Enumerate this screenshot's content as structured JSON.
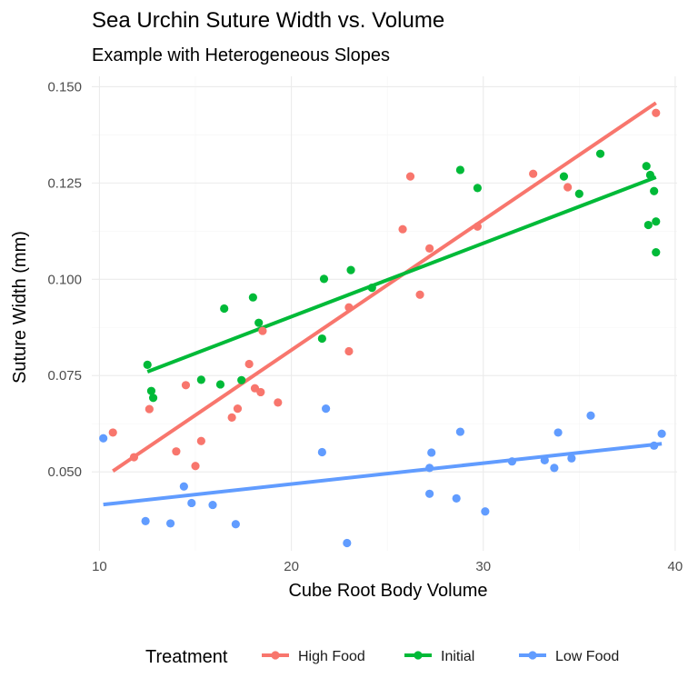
{
  "chart_data": {
    "type": "scatter",
    "title": "Sea Urchin Suture Width vs. Volume",
    "subtitle": "Example with Heterogeneous Slopes",
    "xlabel": "Cube Root Body Volume",
    "ylabel": "Suture Width (mm)",
    "xlim": [
      9.6,
      40.1
    ],
    "ylim": [
      0.0295,
      0.1527
    ],
    "x_ticks": [
      10,
      20,
      30,
      40
    ],
    "x_tick_labels": [
      "10",
      "20",
      "30",
      "40"
    ],
    "y_ticks": [
      0.05,
      0.075,
      0.1,
      0.125,
      0.15
    ],
    "y_tick_labels": [
      "0.050",
      "0.075",
      "0.100",
      "0.125",
      "0.150"
    ],
    "grid": true,
    "legend": {
      "title": "Treatment",
      "position": "bottom"
    },
    "series": [
      {
        "name": "High Food",
        "color": "#F8766D",
        "points": [
          [
            10.7,
            0.0602
          ],
          [
            11.8,
            0.0538
          ],
          [
            12.6,
            0.0663
          ],
          [
            14.0,
            0.0553
          ],
          [
            14.5,
            0.0725
          ],
          [
            15.0,
            0.0515
          ],
          [
            15.3,
            0.058
          ],
          [
            16.9,
            0.0641
          ],
          [
            17.2,
            0.0664
          ],
          [
            17.8,
            0.078
          ],
          [
            18.1,
            0.0717
          ],
          [
            18.4,
            0.0707
          ],
          [
            18.5,
            0.0866
          ],
          [
            19.3,
            0.068
          ],
          [
            23.0,
            0.0927
          ],
          [
            23.0,
            0.0813
          ],
          [
            25.8,
            0.113
          ],
          [
            26.2,
            0.1267
          ],
          [
            26.7,
            0.096
          ],
          [
            27.2,
            0.108
          ],
          [
            29.7,
            0.1137
          ],
          [
            32.6,
            0.1274
          ],
          [
            34.4,
            0.1239
          ],
          [
            39.0,
            0.1432
          ]
        ],
        "fit": {
          "x": [
            10.7,
            39.0
          ],
          "y": [
            0.0502,
            0.1458
          ]
        }
      },
      {
        "name": "Initial",
        "color": "#00BA38",
        "points": [
          [
            12.5,
            0.0778
          ],
          [
            12.7,
            0.071
          ],
          [
            12.8,
            0.0692
          ],
          [
            15.3,
            0.0739
          ],
          [
            16.3,
            0.0727
          ],
          [
            16.5,
            0.0924
          ],
          [
            17.4,
            0.0738
          ],
          [
            18.0,
            0.0953
          ],
          [
            18.3,
            0.0887
          ],
          [
            21.6,
            0.0846
          ],
          [
            21.7,
            0.1001
          ],
          [
            23.1,
            0.1024
          ],
          [
            24.2,
            0.0978
          ],
          [
            28.8,
            0.1284
          ],
          [
            29.7,
            0.1237
          ],
          [
            34.2,
            0.1267
          ],
          [
            35.0,
            0.1222
          ],
          [
            36.1,
            0.1326
          ],
          [
            38.5,
            0.1294
          ],
          [
            38.6,
            0.1141
          ],
          [
            38.7,
            0.1271
          ],
          [
            38.9,
            0.1229
          ],
          [
            39.0,
            0.115
          ],
          [
            39.0,
            0.107
          ]
        ],
        "fit": {
          "x": [
            12.5,
            39.0
          ],
          "y": [
            0.076,
            0.1265
          ]
        }
      },
      {
        "name": "Low Food",
        "color": "#619CFF",
        "points": [
          [
            10.2,
            0.0587
          ],
          [
            12.4,
            0.0372
          ],
          [
            13.7,
            0.0366
          ],
          [
            14.4,
            0.0462
          ],
          [
            14.8,
            0.0419
          ],
          [
            15.9,
            0.0414
          ],
          [
            17.1,
            0.0364
          ],
          [
            21.6,
            0.0551
          ],
          [
            21.8,
            0.0664
          ],
          [
            22.9,
            0.0315
          ],
          [
            27.2,
            0.051
          ],
          [
            27.2,
            0.0443
          ],
          [
            27.3,
            0.055
          ],
          [
            28.6,
            0.0431
          ],
          [
            28.8,
            0.0604
          ],
          [
            30.1,
            0.0397
          ],
          [
            31.5,
            0.0527
          ],
          [
            33.2,
            0.053
          ],
          [
            33.7,
            0.051
          ],
          [
            33.9,
            0.0602
          ],
          [
            34.6,
            0.0535
          ],
          [
            35.6,
            0.0646
          ],
          [
            38.9,
            0.0568
          ],
          [
            39.3,
            0.0599
          ]
        ],
        "fit": {
          "x": [
            10.2,
            39.3
          ],
          "y": [
            0.0415,
            0.0573
          ]
        }
      }
    ]
  }
}
